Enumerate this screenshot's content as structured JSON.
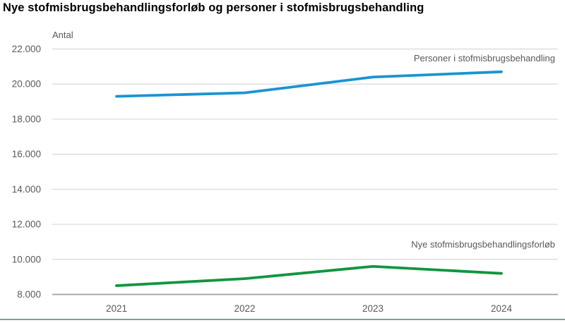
{
  "colors": {
    "gridline": "#d9d9d9",
    "axis_line": "#9e9e9e",
    "text_gray": "#595959",
    "bottom_border": "#7d9cb0",
    "series_blue": "#1b94d1",
    "series_green": "#12953f"
  },
  "chart_data": {
    "type": "line",
    "title": "Nye stofmisbrugsbehandlingsforløb og personer i stofmisbrugsbehandling",
    "xlabel": "",
    "ylabel": "Antal",
    "categories": [
      "2021",
      "2022",
      "2023",
      "2024"
    ],
    "series": [
      {
        "name": "Personer i stofmisbrugsbehandling",
        "color": "#1b94d1",
        "values": [
          19300,
          19500,
          20400,
          20700
        ]
      },
      {
        "name": "Nye stofmisbrugsbehandlingsforløb",
        "color": "#12953f",
        "values": [
          8500,
          8900,
          9600,
          9200
        ]
      }
    ],
    "ylim": [
      8000,
      22000
    ],
    "yticks": [
      {
        "value": 8000,
        "label": "8.000"
      },
      {
        "value": 10000,
        "label": "10.000"
      },
      {
        "value": 12000,
        "label": "12.000"
      },
      {
        "value": 14000,
        "label": "14.000"
      },
      {
        "value": 16000,
        "label": "16.000"
      },
      {
        "value": 18000,
        "label": "18.000"
      },
      {
        "value": 20000,
        "label": "20.000"
      },
      {
        "value": 22000,
        "label": "22.000"
      }
    ],
    "grid": true,
    "legend_position": "inline-labels-right"
  }
}
